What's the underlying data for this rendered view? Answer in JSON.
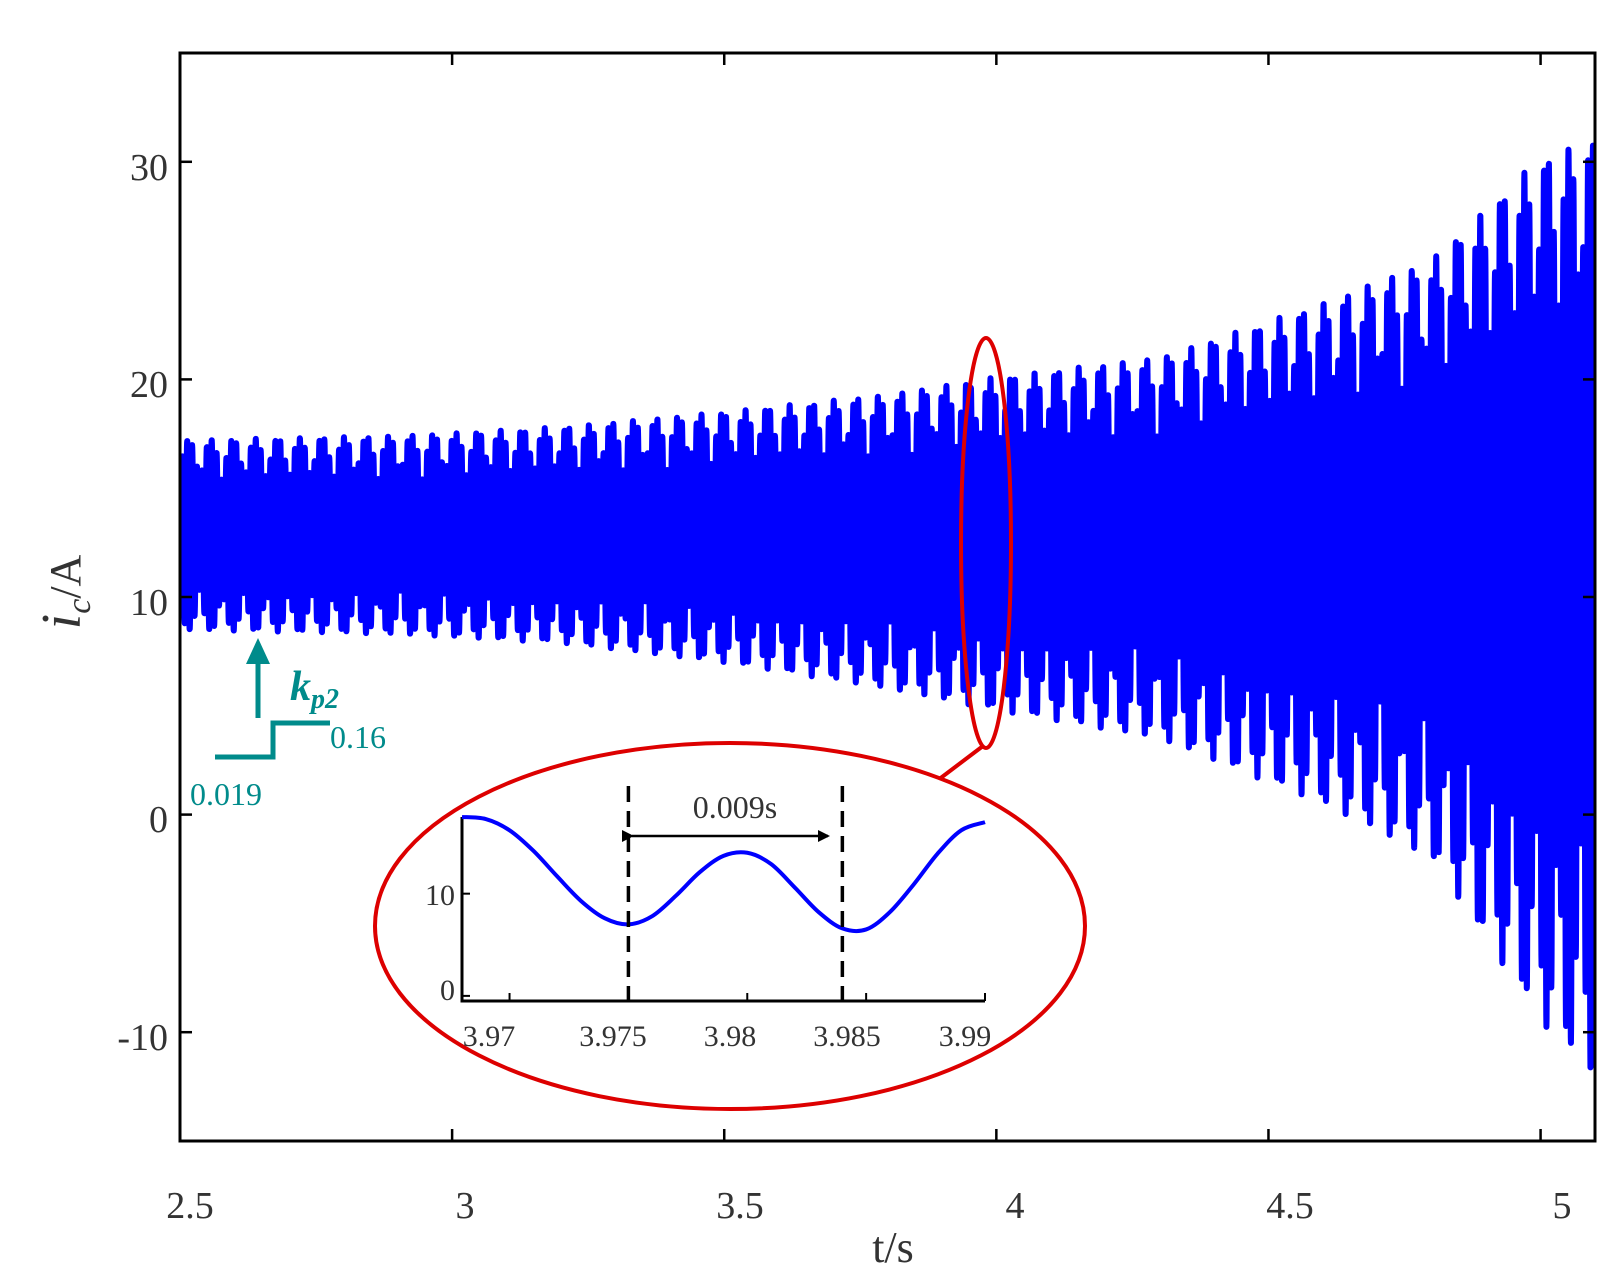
{
  "chart_data": [
    {
      "type": "line",
      "xlabel": "t/s",
      "ylabel_main": "i",
      "ylabel_sub": "c",
      "ylabel_unit": "/A",
      "xlim": [
        2.5,
        5.1
      ],
      "ylim": [
        -15,
        35
      ],
      "xticks": [
        2.5,
        3,
        3.5,
        4,
        4.5,
        5
      ],
      "xtick_labels": [
        "2.5",
        "3",
        "3.5",
        "4",
        "4.5",
        "5"
      ],
      "yticks": [
        -10,
        0,
        10,
        20,
        30
      ],
      "ytick_labels": [
        "-10",
        "0",
        "10",
        "20",
        "30"
      ],
      "grid": false,
      "legend": "none",
      "series": [
        {
          "color": "#0000ff",
          "center_value": 12.8,
          "oscillation_period_s": 0.009,
          "envelope": {
            "t": [
              2.5,
              2.9,
              3.2,
              3.5,
              3.8,
              4.0,
              4.3,
              4.6,
              4.8,
              5.0,
              5.1
            ],
            "max": [
              17.2,
              17.4,
              17.8,
              18.5,
              19.3,
              20.1,
              21.0,
              23.5,
              25.5,
              30.2,
              31.0
            ],
            "min": [
              8.5,
              8.3,
              7.9,
              7.0,
              5.8,
              4.8,
              3.5,
              0.5,
              -2.0,
              -9.5,
              -12.0
            ]
          }
        }
      ],
      "annotations": {
        "kp2_label_main": "k",
        "kp2_label_sub": "p2",
        "kp2_low": "0.019",
        "kp2_high": "0.16",
        "kp2_step_time": 2.6,
        "zoom_time": 3.98,
        "annotation_color": "#008b8b",
        "highlight_color": "#dd0000"
      }
    },
    {
      "type": "line",
      "xlim": [
        3.968,
        3.99
      ],
      "ylim": [
        -0.5,
        17.5
      ],
      "xticks": [
        3.97,
        3.975,
        3.98,
        3.985,
        3.99
      ],
      "xtick_labels": [
        "3.97",
        "3.975",
        "3.98",
        "3.985",
        "3.99"
      ],
      "yticks": [
        0,
        10
      ],
      "ytick_labels": [
        "0",
        "10"
      ],
      "series": [
        {
          "color": "#0000ff",
          "x": [
            3.968,
            3.969,
            3.97,
            3.971,
            3.972,
            3.973,
            3.974,
            3.975,
            3.976,
            3.977,
            3.978,
            3.979,
            3.98,
            3.981,
            3.982,
            3.983,
            3.984,
            3.985,
            3.986,
            3.987,
            3.988,
            3.989,
            3.99
          ],
          "y": [
            17.5,
            17.3,
            16.2,
            14.2,
            11.7,
            9.3,
            7.6,
            7.0,
            7.8,
            9.8,
            12.1,
            13.7,
            14.0,
            12.9,
            10.6,
            8.2,
            6.6,
            6.5,
            8.2,
            10.9,
            13.9,
            16.2,
            17.0
          ]
        }
      ],
      "markers": {
        "x": [
          3.975,
          3.984
        ],
        "interval_label": "0.009s"
      }
    }
  ]
}
